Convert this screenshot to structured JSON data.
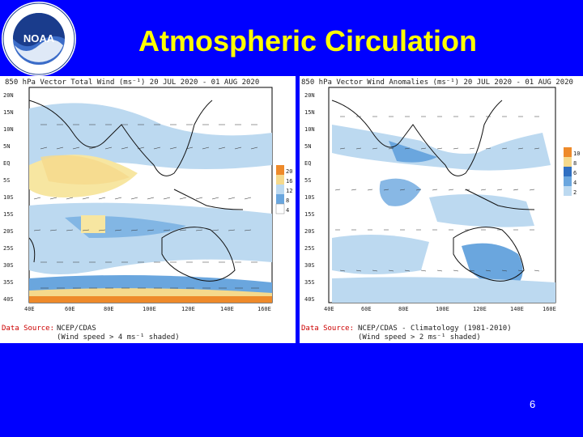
{
  "slide": {
    "title": "Atmospheric Circulation",
    "page_number": "6",
    "logo_text": "NOAA",
    "logo_ring_text": "NATIONAL OCEANIC AND ATMOSPHERIC ADMINISTRATION · U.S. DEPARTMENT OF COMMERCE"
  },
  "left_panel": {
    "title": "850 hPa Vector Total Wind (ms⁻¹) 20 JUL 2020 - 01 AUG 2020",
    "lat_ticks": [
      "20N",
      "15N",
      "10N",
      "5N",
      "EQ",
      "5S",
      "10S",
      "15S",
      "20S",
      "25S",
      "30S",
      "35S",
      "40S"
    ],
    "lon_ticks": [
      "40E",
      "60E",
      "80E",
      "100E",
      "120E",
      "140E",
      "160E"
    ],
    "legend": [
      "20",
      "16",
      "12",
      "8",
      "4"
    ],
    "source_label": "Data Source:",
    "source_text": "NCEP/CDAS",
    "note": "(Wind speed > 4 ms⁻¹ shaded)"
  },
  "right_panel": {
    "title": "850 hPa Vector Wind Anomalies (ms⁻¹) 20 JUL 2020 - 01 AUG 2020",
    "lat_ticks": [
      "20N",
      "15N",
      "10N",
      "5N",
      "EQ",
      "5S",
      "10S",
      "15S",
      "20S",
      "25S",
      "30S",
      "35S",
      "40S"
    ],
    "lon_ticks": [
      "40E",
      "60E",
      "80E",
      "100E",
      "120E",
      "140E",
      "160E"
    ],
    "legend": [
      "10",
      "8",
      "6",
      "4",
      "2"
    ],
    "source_label": "Data Source:",
    "source_text": "NCEP/CDAS - Climatology (1981-2010)",
    "note": "(Wind speed > 2 ms⁻¹ shaded)"
  },
  "colors": {
    "background": "#0000ff",
    "title": "#ffff00",
    "shade_light": "#bcd9f0",
    "shade_mid": "#6aa6de",
    "shade_dark": "#2f6fc2",
    "shade_yellow": "#f7e6a1",
    "shade_orange": "#ee8a2a",
    "land_line": "#111111",
    "source_red": "#cc0000"
  }
}
